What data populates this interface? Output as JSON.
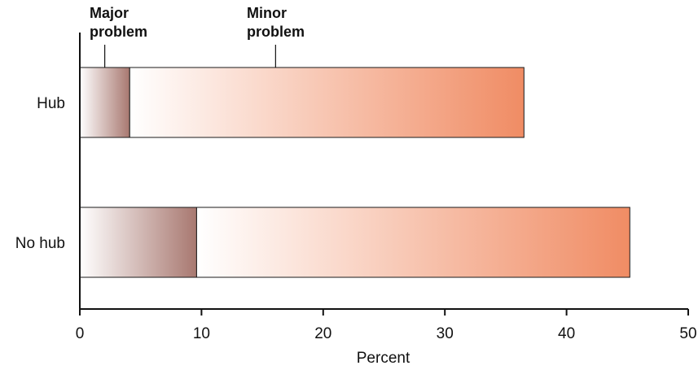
{
  "chart_data": {
    "type": "bar",
    "orientation": "horizontal",
    "stacked": true,
    "categories": [
      "Hub",
      "No hub"
    ],
    "series": [
      {
        "name": "Major\nproblem",
        "values": [
          4.1,
          9.6
        ]
      },
      {
        "name": "Minor\nproblem",
        "values": [
          32.4,
          35.6
        ]
      }
    ],
    "xlabel": "Percent",
    "xlim": [
      0,
      50
    ],
    "xticks": [
      0,
      10,
      20,
      30,
      40,
      50
    ],
    "legend_placement": "top-left",
    "grid": false,
    "colors": {
      "major_start": "#ffffff",
      "major_end": "#a87870",
      "minor_start": "#ffffff",
      "minor_end": "#f08c64",
      "outline": "#1a1a1a"
    }
  }
}
